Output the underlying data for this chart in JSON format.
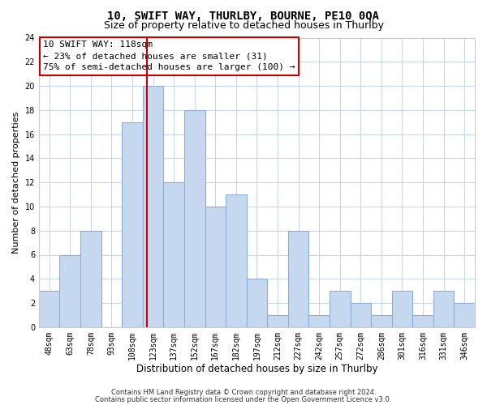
{
  "title": "10, SWIFT WAY, THURLBY, BOURNE, PE10 0QA",
  "subtitle": "Size of property relative to detached houses in Thurlby",
  "xlabel": "Distribution of detached houses by size in Thurlby",
  "ylabel": "Number of detached properties",
  "bar_labels": [
    "48sqm",
    "63sqm",
    "78sqm",
    "93sqm",
    "108sqm",
    "123sqm",
    "137sqm",
    "152sqm",
    "167sqm",
    "182sqm",
    "197sqm",
    "212sqm",
    "227sqm",
    "242sqm",
    "257sqm",
    "272sqm",
    "286sqm",
    "301sqm",
    "316sqm",
    "331sqm",
    "346sqm"
  ],
  "bar_values": [
    3,
    6,
    8,
    0,
    17,
    20,
    12,
    18,
    10,
    11,
    4,
    1,
    8,
    1,
    3,
    2,
    1,
    3,
    1,
    3,
    2
  ],
  "bar_color": "#c5d8f0",
  "bar_edge_color": "#8ab0d8",
  "vline_color": "#cc0000",
  "vline_x_index": 4.7,
  "ylim": [
    0,
    24
  ],
  "yticks": [
    0,
    2,
    4,
    6,
    8,
    10,
    12,
    14,
    16,
    18,
    20,
    22,
    24
  ],
  "annotation_title": "10 SWIFT WAY: 118sqm",
  "annotation_line1": "← 23% of detached houses are smaller (31)",
  "annotation_line2": "75% of semi-detached houses are larger (100) →",
  "annotation_box_color": "#ffffff",
  "annotation_box_edge": "#cc0000",
  "footer1": "Contains HM Land Registry data © Crown copyright and database right 2024.",
  "footer2": "Contains public sector information licensed under the Open Government Licence v3.0.",
  "bg_color": "#ffffff",
  "grid_color": "#c8d8ec",
  "title_fontsize": 10,
  "subtitle_fontsize": 9,
  "xlabel_fontsize": 8.5,
  "ylabel_fontsize": 8,
  "tick_fontsize": 7,
  "annot_fontsize": 8,
  "footer_fontsize": 6
}
